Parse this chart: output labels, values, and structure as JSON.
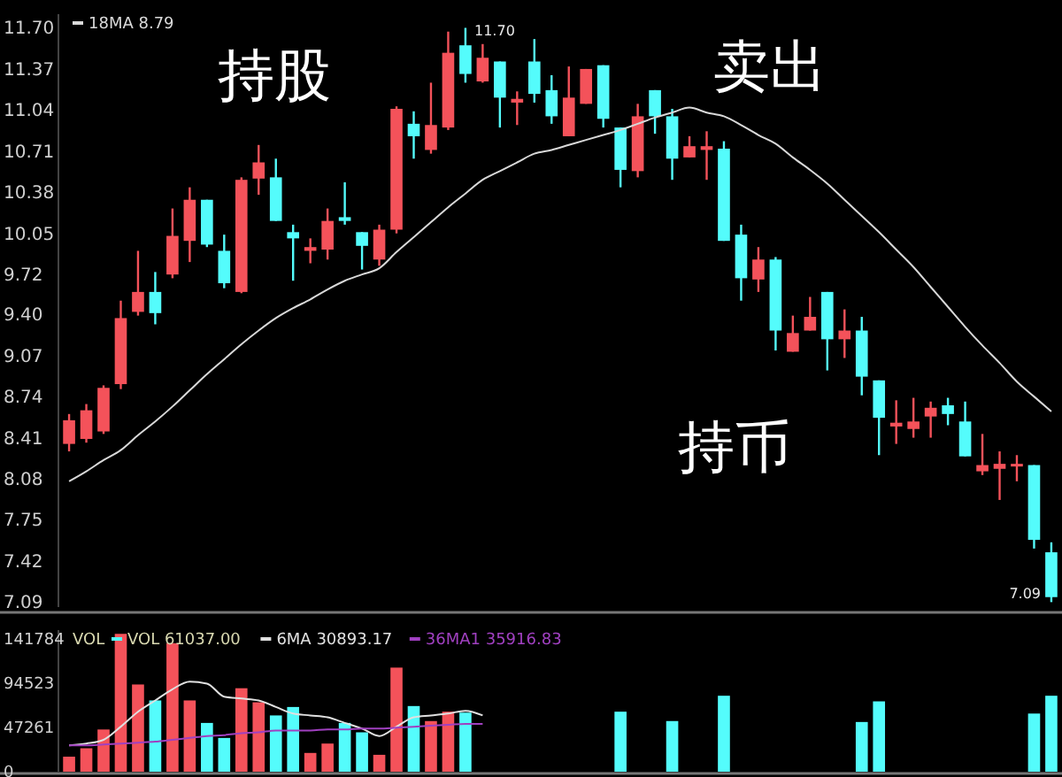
{
  "chart_data": [
    {
      "type": "candlestick",
      "categories": [
        null,
        null,
        null,
        null,
        null,
        null,
        null,
        null,
        null,
        null,
        null,
        null,
        null,
        null,
        null,
        null,
        null,
        null,
        null,
        null,
        null,
        null,
        null,
        null,
        null,
        null,
        null,
        null,
        null,
        null,
        null,
        null,
        null,
        null,
        null,
        null,
        null,
        null,
        null,
        null,
        null,
        null,
        null,
        null,
        null,
        null,
        null,
        null,
        null,
        null,
        null,
        null,
        null,
        null,
        null,
        null,
        null,
        null
      ],
      "ohlc": [
        [
          8.36,
          8.6,
          8.3,
          8.55
        ],
        [
          8.4,
          8.68,
          8.37,
          8.63
        ],
        [
          8.46,
          8.83,
          8.44,
          8.81
        ],
        [
          8.84,
          9.51,
          8.8,
          9.37
        ],
        [
          9.42,
          9.91,
          9.39,
          9.58
        ],
        [
          9.58,
          9.74,
          9.32,
          9.41
        ],
        [
          9.72,
          10.25,
          9.69,
          10.03
        ],
        [
          9.99,
          10.42,
          9.82,
          10.32
        ],
        [
          10.32,
          10.32,
          9.94,
          9.96
        ],
        [
          9.91,
          10.04,
          9.61,
          9.65
        ],
        [
          9.58,
          10.5,
          9.57,
          10.48
        ],
        [
          10.49,
          10.76,
          10.36,
          10.62
        ],
        [
          10.5,
          10.65,
          10.15,
          10.15
        ],
        [
          10.06,
          10.12,
          9.67,
          10.01
        ],
        [
          9.91,
          10.01,
          9.81,
          9.94
        ],
        [
          9.92,
          10.25,
          9.84,
          10.15
        ],
        [
          10.18,
          10.46,
          10.12,
          10.15
        ],
        [
          10.06,
          10.06,
          9.76,
          9.95
        ],
        [
          9.84,
          10.12,
          9.79,
          10.08
        ],
        [
          10.08,
          11.07,
          10.05,
          11.05
        ],
        [
          10.93,
          11.03,
          10.65,
          10.83
        ],
        [
          10.72,
          11.26,
          10.69,
          10.92
        ],
        [
          10.9,
          11.67,
          10.88,
          11.5
        ],
        [
          11.56,
          11.7,
          11.26,
          11.33
        ],
        [
          11.27,
          11.57,
          11.26,
          11.46
        ],
        [
          11.43,
          11.43,
          10.9,
          11.14
        ],
        [
          11.1,
          11.19,
          10.92,
          11.13
        ],
        [
          11.43,
          11.61,
          11.1,
          11.17
        ],
        [
          11.2,
          11.32,
          10.93,
          10.99
        ],
        [
          10.83,
          11.39,
          10.83,
          11.14
        ],
        [
          11.09,
          11.37,
          11.09,
          11.37
        ],
        [
          11.4,
          11.4,
          10.9,
          10.97
        ],
        [
          10.9,
          10.9,
          10.42,
          10.56
        ],
        [
          10.55,
          11.09,
          10.5,
          10.99
        ],
        [
          11.2,
          11.2,
          10.85,
          10.99
        ],
        [
          10.99,
          11.05,
          10.48,
          10.65
        ],
        [
          10.66,
          10.83,
          10.66,
          10.75
        ],
        [
          10.72,
          10.87,
          10.48,
          10.75
        ],
        [
          10.73,
          10.79,
          9.99,
          9.99
        ],
        [
          10.04,
          10.12,
          9.51,
          9.69
        ],
        [
          9.68,
          9.94,
          9.58,
          9.84
        ],
        [
          9.84,
          9.86,
          9.11,
          9.27
        ],
        [
          9.1,
          9.39,
          9.1,
          9.25
        ],
        [
          9.27,
          9.54,
          9.27,
          9.38
        ],
        [
          9.58,
          9.58,
          8.95,
          9.2
        ],
        [
          9.2,
          9.44,
          9.05,
          9.27
        ],
        [
          9.27,
          9.38,
          8.75,
          8.9
        ],
        [
          8.87,
          8.87,
          8.27,
          8.57
        ],
        [
          8.5,
          8.71,
          8.36,
          8.53
        ],
        [
          8.48,
          8.73,
          8.41,
          8.54
        ],
        [
          8.58,
          8.7,
          8.41,
          8.65
        ],
        [
          8.67,
          8.73,
          8.51,
          8.6
        ],
        [
          8.54,
          8.7,
          8.26,
          8.26
        ],
        [
          8.14,
          8.44,
          8.11,
          8.19
        ],
        [
          8.16,
          8.3,
          7.91,
          8.2
        ],
        [
          8.19,
          8.27,
          8.06,
          8.2
        ],
        [
          8.19,
          8.19,
          7.52,
          7.59
        ],
        [
          7.49,
          7.57,
          7.09,
          7.13
        ]
      ],
      "colors": [
        "#f4525a",
        "#f4525a",
        "#f4525a",
        "#f4525a",
        "#f4525a",
        "#54fcfc",
        "#f4525a",
        "#f4525a",
        "#54fcfc",
        "#54fcfc",
        "#f4525a",
        "#f4525a",
        "#54fcfc",
        "#54fcfc",
        "#f4525a",
        "#f4525a",
        "#54fcfc",
        "#54fcfc",
        "#f4525a",
        "#f4525a",
        "#54fcfc",
        "#f4525a",
        "#f4525a",
        "#54fcfc",
        "#f4525a",
        "#54fcfc",
        "#f4525a",
        "#54fcfc",
        "#54fcfc",
        "#f4525a",
        "#f4525a",
        "#54fcfc",
        "#54fcfc",
        "#f4525a",
        "#54fcfc",
        "#54fcfc",
        "#f4525a",
        "#f4525a",
        "#54fcfc",
        "#54fcfc",
        "#f4525a",
        "#54fcfc",
        "#f4525a",
        "#f4525a",
        "#54fcfc",
        "#f4525a",
        "#54fcfc",
        "#54fcfc",
        "#f4525a",
        "#f4525a",
        "#f4525a",
        "#54fcfc",
        "#54fcfc",
        "#f4525a",
        "#f4525a",
        "#f4525a",
        "#54fcfc",
        "#54fcfc"
      ],
      "series": [
        {
          "type": "line",
          "name": "18MA 8.79",
          "color": "#d8d8d8",
          "values": [
            8.06,
            8.14,
            8.23,
            8.31,
            8.43,
            8.54,
            8.66,
            8.79,
            8.92,
            9.04,
            9.16,
            9.27,
            9.37,
            9.45,
            9.52,
            9.6,
            9.67,
            9.72,
            9.77,
            9.9,
            10.02,
            10.14,
            10.26,
            10.37,
            10.48,
            10.55,
            10.62,
            10.69,
            10.72,
            10.76,
            10.8,
            10.84,
            10.88,
            10.93,
            10.98,
            11.02,
            11.06,
            11.02,
            10.99,
            10.92,
            10.84,
            10.77,
            10.66,
            10.56,
            10.45,
            10.32,
            10.19,
            10.06,
            9.92,
            9.78,
            9.62,
            9.46,
            9.3,
            9.15,
            9.01,
            8.86,
            8.74,
            8.62
          ]
        }
      ],
      "ylim": [
        7.05,
        11.81
      ],
      "yticks": [
        {
          "value": 7.09,
          "label": "7.09"
        },
        {
          "value": 7.42,
          "label": "7.42"
        },
        {
          "value": 7.75,
          "label": "7.75"
        },
        {
          "value": 8.08,
          "label": "8.08"
        },
        {
          "value": 8.41,
          "label": "8.41"
        },
        {
          "value": 8.74,
          "label": "8.74"
        },
        {
          "value": 9.07,
          "label": "9.07"
        },
        {
          "value": 9.4,
          "label": "9.40"
        },
        {
          "value": 9.72,
          "label": "9.72"
        },
        {
          "value": 10.05,
          "label": "10.05"
        },
        {
          "value": 10.38,
          "label": "10.38"
        },
        {
          "value": 10.71,
          "label": "10.71"
        },
        {
          "value": 11.04,
          "label": "11.04"
        },
        {
          "value": 11.37,
          "label": "11.37"
        },
        {
          "value": 11.7,
          "label": "11.70"
        }
      ],
      "tick_labels": "y",
      "legend": "top left",
      "annotations": [
        "持股",
        "卖出",
        "持币",
        "11.70",
        "7.09"
      ]
    },
    {
      "type": "bar",
      "title": "VOL",
      "categories": [
        null,
        null,
        null,
        null,
        null,
        null,
        null,
        null,
        null,
        null,
        null,
        null,
        null,
        null,
        null,
        null,
        null,
        null,
        null,
        null,
        null,
        null,
        null,
        null,
        null,
        null,
        null,
        null,
        null,
        null,
        null,
        null,
        null,
        null,
        null,
        null,
        null,
        null,
        null,
        null,
        null,
        null,
        null,
        null,
        null,
        null,
        null,
        null,
        null,
        null,
        null,
        null,
        null,
        null,
        null,
        null,
        null,
        null
      ],
      "series": [
        {
          "name": "VOL 61037.00",
          "values": [
            16000,
            25000,
            45000,
            147000,
            93000,
            76000,
            137000,
            76000,
            52000,
            36000,
            89000,
            74000,
            60000,
            69000,
            20000,
            30000,
            52000,
            42000,
            18000,
            111000,
            70000,
            54000,
            64000,
            63000,
            null,
            null,
            null,
            null,
            null,
            null,
            null,
            null,
            64000,
            null,
            null,
            54000,
            null,
            null,
            81000,
            null,
            null,
            null,
            null,
            null,
            null,
            null,
            53000,
            75000,
            null,
            null,
            null,
            null,
            null,
            null,
            null,
            null,
            62000,
            81000
          ],
          "colors": [
            "#f4525a",
            "#f4525a",
            "#f4525a",
            "#f4525a",
            "#f4525a",
            "#54fcfc",
            "#f4525a",
            "#f4525a",
            "#54fcfc",
            "#54fcfc",
            "#f4525a",
            "#f4525a",
            "#54fcfc",
            "#54fcfc",
            "#f4525a",
            "#f4525a",
            "#54fcfc",
            "#54fcfc",
            "#f4525a",
            "#f4525a",
            "#54fcfc",
            "#f4525a",
            "#f4525a",
            "#54fcfc",
            null,
            null,
            null,
            null,
            null,
            null,
            null,
            null,
            "#54fcfc",
            null,
            null,
            "#54fcfc",
            null,
            null,
            "#54fcfc",
            null,
            null,
            null,
            null,
            null,
            null,
            null,
            "#54fcfc",
            "#54fcfc",
            null,
            null,
            null,
            null,
            null,
            null,
            null,
            null,
            "#54fcfc",
            "#54fcfc"
          ]
        },
        {
          "type": "line",
          "name": "6MA 30893.17",
          "color": "#e0e0e0",
          "values": [
            28000,
            30000,
            34000,
            48000,
            64000,
            76000,
            88000,
            96000,
            94000,
            80000,
            78000,
            76000,
            69000,
            62000,
            60000,
            58000,
            52000,
            46000,
            38000,
            48000,
            58000,
            60000,
            62000,
            65000,
            60000,
            null,
            null,
            null,
            null,
            null,
            null,
            null,
            null,
            null,
            null,
            null,
            null,
            null,
            null,
            null,
            null,
            null,
            null,
            null,
            null,
            null,
            null,
            null,
            null,
            null,
            null,
            null,
            null,
            null,
            null,
            null,
            null,
            null
          ]
        },
        {
          "type": "line",
          "name": "36MA1 35916.83",
          "color": "#a040c0",
          "values": [
            28000,
            28000,
            29000,
            30000,
            31000,
            32000,
            34000,
            36000,
            38000,
            39000,
            41000,
            42000,
            44000,
            44000,
            44000,
            45000,
            45000,
            46000,
            46000,
            47000,
            48000,
            49000,
            50000,
            51000,
            51000,
            null,
            null,
            null,
            null,
            null,
            null,
            null,
            null,
            null,
            null,
            null,
            null,
            null,
            null,
            null,
            null,
            null,
            null,
            null,
            null,
            null,
            null,
            null,
            null,
            null,
            null,
            null,
            null,
            null,
            null,
            null,
            null,
            null
          ]
        }
      ],
      "ylim": [
        0,
        151000
      ],
      "yticks": [
        0,
        47261,
        94523,
        141784
      ],
      "tick_labels": "y",
      "legend": "top left"
    }
  ]
}
